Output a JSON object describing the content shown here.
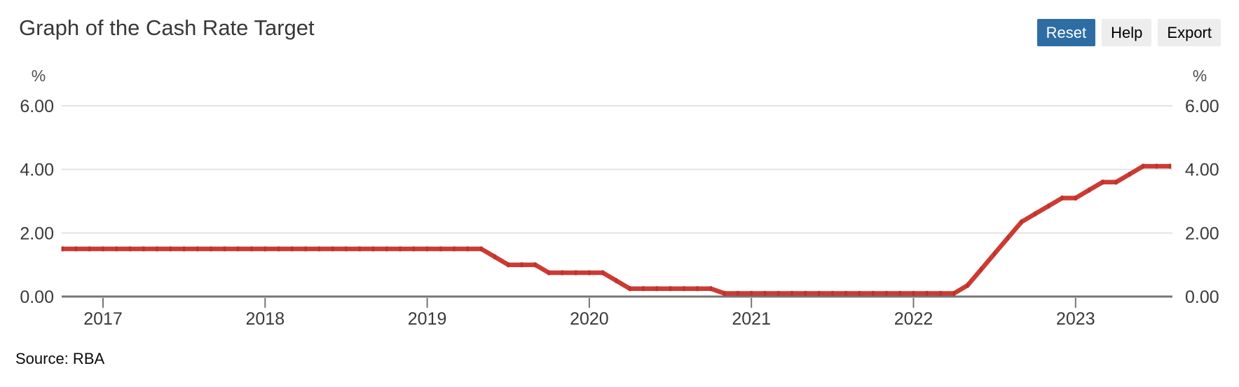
{
  "header": {
    "title": "Graph of the Cash Rate Target",
    "buttons": [
      {
        "label": "Reset"
      },
      {
        "label": "Help"
      },
      {
        "label": "Export"
      }
    ]
  },
  "source": "Source: RBA",
  "chart_data": {
    "type": "line",
    "title": "Graph of the Cash Rate Target",
    "unit": "%",
    "ylim": [
      0,
      6
    ],
    "grid": true,
    "axis_color": "#757575",
    "grid_color": "#e4e4e4",
    "label_color": "#3a3a3a",
    "unit_label_color": "#4d4d4d",
    "line_color": "#cc3b33",
    "marker_color": "#bb332b",
    "y_ticks": [
      {
        "value": 0,
        "label": "0.00"
      },
      {
        "value": 2,
        "label": "2.00"
      },
      {
        "value": 4,
        "label": "4.00"
      },
      {
        "value": 6,
        "label": "6.00"
      }
    ],
    "x_ticks": [
      "2017",
      "2018",
      "2019",
      "2020",
      "2021",
      "2022",
      "2023"
    ],
    "series": [
      {
        "name": "Cash Rate Target",
        "start_month": "2016-10",
        "frequency": "monthly",
        "values": [
          1.5,
          1.5,
          1.5,
          1.5,
          1.5,
          1.5,
          1.5,
          1.5,
          1.5,
          1.5,
          1.5,
          1.5,
          1.5,
          1.5,
          1.5,
          1.5,
          1.5,
          1.5,
          1.5,
          1.5,
          1.5,
          1.5,
          1.5,
          1.5,
          1.5,
          1.5,
          1.5,
          1.5,
          1.5,
          1.5,
          1.5,
          1.5,
          1.25,
          1.0,
          1.0,
          1.0,
          0.75,
          0.75,
          0.75,
          0.75,
          0.75,
          0.5,
          0.25,
          0.25,
          0.25,
          0.25,
          0.25,
          0.25,
          0.25,
          0.1,
          0.1,
          0.1,
          0.1,
          0.1,
          0.1,
          0.1,
          0.1,
          0.1,
          0.1,
          0.1,
          0.1,
          0.1,
          0.1,
          0.1,
          0.1,
          0.1,
          0.1,
          0.35,
          0.85,
          1.35,
          1.85,
          2.35,
          2.6,
          2.85,
          3.1,
          3.1,
          3.35,
          3.6,
          3.6,
          3.85,
          4.1,
          4.1,
          4.1
        ]
      }
    ]
  }
}
